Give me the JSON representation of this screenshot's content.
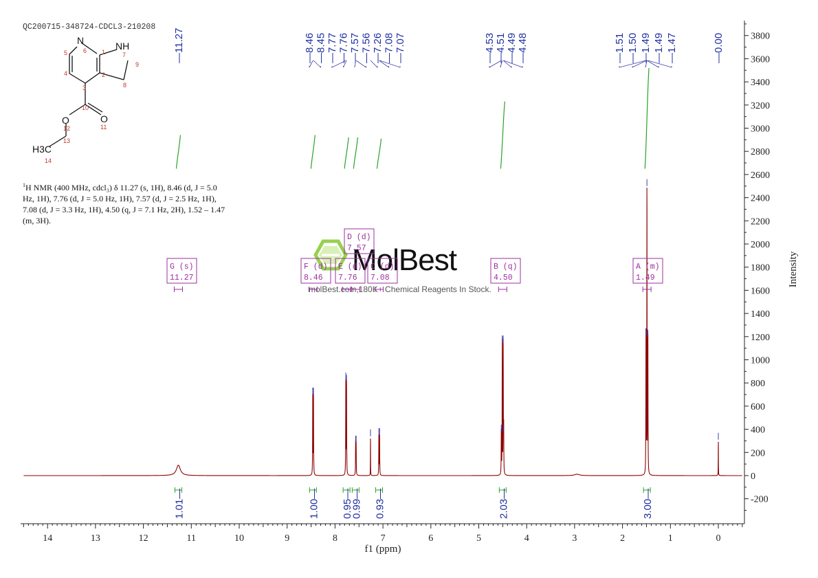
{
  "sample_id": "QC200715-348724-CDCL3-210208",
  "nmr_description": {
    "nucleus_sup": "1",
    "text": "H NMR (400 MHz, cdcl₃) δ 11.27 (s, 1H), 8.46 (d, J = 5.0 Hz, 1H), 7.76 (d, J = 5.0 Hz, 1H), 7.57 (d, J = 2.5 Hz, 1H), 7.08 (d, J = 3.3 Hz, 1H), 4.50 (q, J = 7.1 Hz, 2H), 1.52 – 1.47 (m, 3H)."
  },
  "watermark": {
    "brand": "MolBest",
    "tagline": "molBest.com,180K+ Chemical Reagents In Stock."
  },
  "molecule": {
    "atoms": [
      "N",
      "NH",
      "O",
      "O",
      "H3C"
    ],
    "atom_numbers": [
      "1",
      "2",
      "3",
      "4",
      "5",
      "6",
      "7",
      "8",
      "9",
      "10",
      "11",
      "12",
      "13",
      "14"
    ]
  },
  "colors": {
    "spectrum": "#8b0000",
    "peak_labels": "#1f2fa0",
    "integrals": "#2aa02a",
    "multiplets": "#9b2fa0",
    "axis": "#222222"
  },
  "chart_data": {
    "type": "line",
    "xlabel": "f1 (ppm)",
    "ylabel": "Intensity",
    "xlim": [
      14.5,
      -0.5
    ],
    "ylim": [
      -400,
      3900
    ],
    "x_ticks": [
      14,
      13,
      12,
      11,
      10,
      9,
      8,
      7,
      6,
      5,
      4,
      3,
      2,
      1,
      0
    ],
    "y_ticks": [
      -200,
      0,
      200,
      400,
      600,
      800,
      1000,
      1200,
      1400,
      1600,
      1800,
      2000,
      2200,
      2400,
      2600,
      2800,
      3000,
      3200,
      3400,
      3600,
      3800
    ],
    "peaks": [
      {
        "ppm": 11.27,
        "height": 90,
        "width": 0.05
      },
      {
        "ppm": 8.465,
        "height": 700,
        "width": 0.003
      },
      {
        "ppm": 8.45,
        "height": 700,
        "width": 0.003
      },
      {
        "ppm": 7.775,
        "height": 830,
        "width": 0.003
      },
      {
        "ppm": 7.76,
        "height": 810,
        "width": 0.003
      },
      {
        "ppm": 7.57,
        "height": 285,
        "width": 0.003
      },
      {
        "ppm": 7.56,
        "height": 285,
        "width": 0.003
      },
      {
        "ppm": 7.26,
        "height": 340,
        "width": 0.002
      },
      {
        "ppm": 7.085,
        "height": 350,
        "width": 0.003
      },
      {
        "ppm": 7.07,
        "height": 350,
        "width": 0.003
      },
      {
        "ppm": 4.53,
        "height": 380,
        "width": 0.003
      },
      {
        "ppm": 4.51,
        "height": 1150,
        "width": 0.003
      },
      {
        "ppm": 4.49,
        "height": 1150,
        "width": 0.003
      },
      {
        "ppm": 4.48,
        "height": 380,
        "width": 0.003
      },
      {
        "ppm": 1.51,
        "height": 1210,
        "width": 0.003
      },
      {
        "ppm": 1.49,
        "height": 2500,
        "width": 0.003
      },
      {
        "ppm": 1.47,
        "height": 1200,
        "width": 0.003
      },
      {
        "ppm": 2.95,
        "height": 12,
        "width": 0.06
      },
      {
        "ppm": 0.0,
        "height": 310,
        "width": 0.002
      }
    ],
    "peak_labels": [
      {
        "text": "11.27",
        "ppm": 11.27
      },
      {
        "text": "8.46",
        "ppm": 8.46
      },
      {
        "text": "8.45",
        "ppm": 8.45
      },
      {
        "text": "7.77",
        "ppm": 7.77
      },
      {
        "text": "7.76",
        "ppm": 7.76
      },
      {
        "text": "7.57",
        "ppm": 7.57
      },
      {
        "text": "7.56",
        "ppm": 7.56
      },
      {
        "text": "7.26",
        "ppm": 7.26
      },
      {
        "text": "7.08",
        "ppm": 7.08
      },
      {
        "text": "7.07",
        "ppm": 7.07
      },
      {
        "text": "4.53",
        "ppm": 4.53
      },
      {
        "text": "4.51",
        "ppm": 4.51
      },
      {
        "text": "4.49",
        "ppm": 4.49
      },
      {
        "text": "4.48",
        "ppm": 4.48
      },
      {
        "text": "1.51",
        "ppm": 1.51
      },
      {
        "text": "1.50",
        "ppm": 1.5
      },
      {
        "text": "1.49",
        "ppm": 1.49
      },
      {
        "text": "1.49",
        "ppm": 1.49
      },
      {
        "text": "1.47",
        "ppm": 1.47
      },
      {
        "text": "0.00",
        "ppm": 0.0
      }
    ],
    "integrals": [
      {
        "value": "1.01",
        "ppm": 11.27,
        "low": 2650,
        "high": 2940
      },
      {
        "value": "1.00",
        "ppm": 8.46,
        "low": 2650,
        "high": 2940
      },
      {
        "value": "0.95",
        "ppm": 7.76,
        "low": 2650,
        "high": 2920
      },
      {
        "value": "0.99",
        "ppm": 7.57,
        "low": 2650,
        "high": 2920
      },
      {
        "value": "0.93",
        "ppm": 7.08,
        "low": 2650,
        "high": 2910
      },
      {
        "value": "2.03",
        "ppm": 4.5,
        "low": 2650,
        "high": 3230
      },
      {
        "value": "3.00",
        "ppm": 1.49,
        "low": 2650,
        "high": 3520
      }
    ],
    "multiplets": [
      {
        "letter": "G",
        "type": "(s)",
        "shift": "11.27",
        "ppm": 11.27
      },
      {
        "letter": "F",
        "type": "(d)",
        "shift": "8.46",
        "ppm": 8.46
      },
      {
        "letter": "E",
        "type": "(d)",
        "shift": "7.76",
        "ppm": 7.76
      },
      {
        "letter": "D",
        "type": "(d)",
        "shift": "7.57",
        "ppm": 7.57
      },
      {
        "letter": "C",
        "type": "(d)",
        "shift": "7.08",
        "ppm": 7.08
      },
      {
        "letter": "B",
        "type": "(q)",
        "shift": "4.50",
        "ppm": 4.5
      },
      {
        "letter": "A",
        "type": "(m)",
        "shift": "1.49",
        "ppm": 1.49
      }
    ]
  }
}
